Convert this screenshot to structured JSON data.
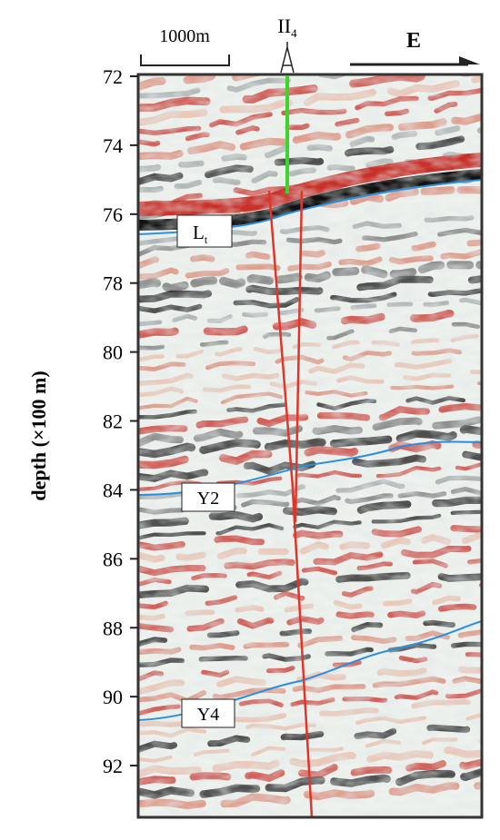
{
  "depth_axis": {
    "label": "depth (×100 m)",
    "ylim": [
      72,
      93.5
    ],
    "ticks": [
      72,
      74,
      76,
      78,
      80,
      82,
      84,
      86,
      88,
      90,
      92
    ]
  },
  "scale_bar": {
    "label": "1000m"
  },
  "well": {
    "label": "II",
    "subscript": "4"
  },
  "direction": {
    "label": "E"
  },
  "horizons": [
    {
      "label": "L",
      "subscript": "t"
    },
    {
      "label": "Y2"
    },
    {
      "label": "Y4"
    }
  ]
}
